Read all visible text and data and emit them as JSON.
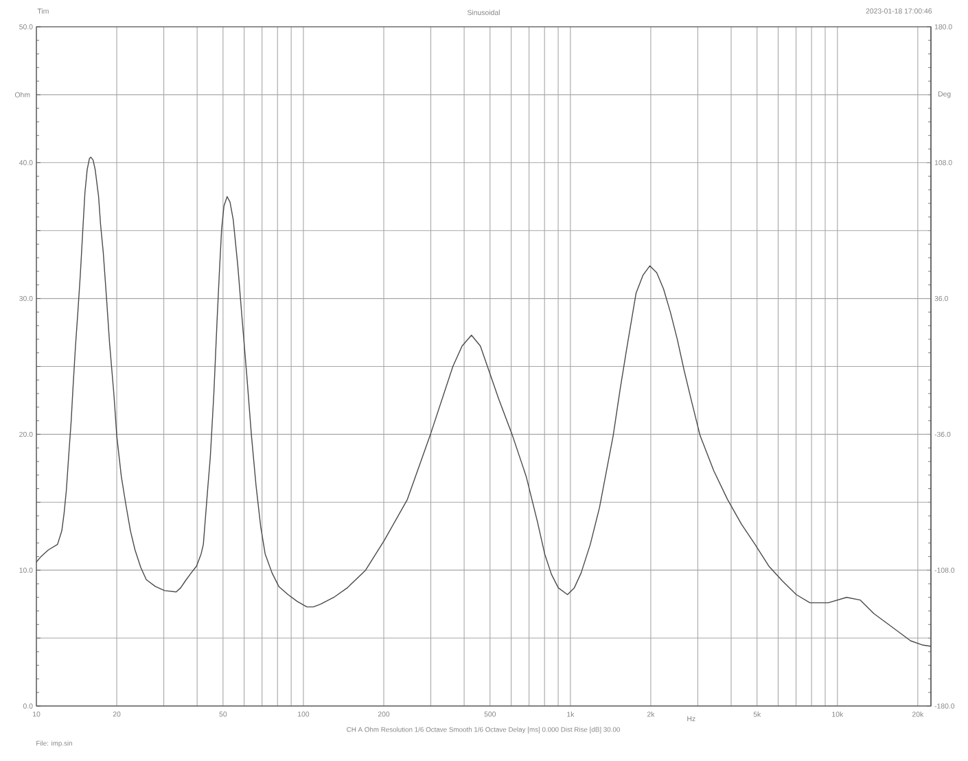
{
  "chart_data": {
    "type": "line",
    "title": "Sinusoidal",
    "xlabel": "Hz",
    "ylabel": "Ohm",
    "y2label": "Deg",
    "annotations": [
      "Tim",
      "2023-01-18 17:00:46",
      "CH A Ohm Resolution 1/6 Octave Smooth 1/6 Octave Delay [ms] 0.000 Dist Rise [dB] 30.00",
      "File: imp.sin"
    ],
    "log": "x",
    "grid": true,
    "line_style": "solid",
    "color": "#4a4a4a",
    "xlim": [
      10,
      22400
    ],
    "ylim": [
      0,
      50
    ],
    "y2lim": [
      -180,
      180
    ],
    "xticks": [
      10,
      20,
      {
        "value": 30,
        "label": null
      },
      {
        "value": 40,
        "label": null
      },
      50,
      {
        "value": 60,
        "label": null
      },
      {
        "value": 70,
        "label": null
      },
      {
        "value": 80,
        "label": null
      },
      {
        "value": 90,
        "label": null
      },
      100,
      200,
      {
        "value": 300,
        "label": null
      },
      {
        "value": 400,
        "label": null
      },
      500,
      {
        "value": 600,
        "label": null
      },
      {
        "value": 700,
        "label": null
      },
      {
        "value": 800,
        "label": null
      },
      {
        "value": 900,
        "label": null
      },
      {
        "value": 1000,
        "label": "1k"
      },
      {
        "value": 2000,
        "label": "2k"
      },
      {
        "value": 3000,
        "label": null
      },
      {
        "value": 4000,
        "label": null
      },
      {
        "value": 5000,
        "label": "5k"
      },
      {
        "value": 6000,
        "label": null
      },
      {
        "value": 7000,
        "label": null
      },
      {
        "value": 8000,
        "label": null
      },
      {
        "value": 9000,
        "label": null
      },
      {
        "value": 10000,
        "label": "10k"
      },
      {
        "value": 20000,
        "label": "20k"
      }
    ],
    "yticks": [
      {
        "value": 0,
        "label": "0.0"
      },
      {
        "value": 5,
        "label": null
      },
      {
        "value": 10,
        "label": "10.0"
      },
      {
        "value": 15,
        "label": null
      },
      {
        "value": 20,
        "label": "20.0"
      },
      {
        "value": 25,
        "label": null
      },
      {
        "value": 30,
        "label": "30.0"
      },
      {
        "value": 35,
        "label": null
      },
      {
        "value": 40,
        "label": "40.0"
      },
      {
        "value": 45,
        "label": null
      },
      {
        "value": 50,
        "label": "50.0"
      }
    ],
    "y2ticks": [
      {
        "value": -180,
        "label": "-180.0"
      },
      {
        "value": -108,
        "label": "-108.0"
      },
      {
        "value": -36,
        "label": "-36.0"
      },
      {
        "value": 36,
        "label": "36.0"
      },
      {
        "value": 108,
        "label": "108.0"
      },
      {
        "value": 180,
        "label": "180.0"
      }
    ],
    "x": [
      10,
      10.4,
      11.1,
      12.0,
      12.45,
      12.7,
      12.95,
      13.2,
      13.5,
      13.7,
      14.0,
      14.3,
      14.6,
      14.9,
      15.2,
      15.5,
      15.8,
      16.0,
      16.3,
      16.6,
      17.1,
      17.4,
      17.8,
      18.3,
      18.8,
      19.5,
      20.0,
      20.8,
      21.6,
      22.5,
      23.4,
      24.6,
      25.8,
      27.9,
      30.2,
      33.4,
      34.7,
      36.1,
      38.0,
      39.8,
      41.4,
      42.2,
      43.1,
      43.9,
      44.8,
      46.2,
      47.5,
      48.5,
      49.4,
      50.4,
      51.8,
      53.1,
      54.6,
      56.8,
      59.0,
      61.4,
      63.9,
      66.5,
      69.2,
      71.9,
      76.3,
      80.9,
      87.6,
      94.8,
      103,
      109,
      116,
      130,
      146,
      171,
      201,
      245,
      298,
      363,
      393,
      426,
      460,
      489,
      539,
      607,
      683,
      754,
      801,
      849,
      901,
      975,
      1034,
      1097,
      1187,
      1285,
      1446,
      1535,
      1628,
      1762,
      1869,
      1983,
      2105,
      2233,
      2368,
      2513,
      2667,
      2829,
      3061,
      3446,
      3879,
      4367,
      4914,
      5534,
      6229,
      7014,
      7893,
      9242,
      10820,
      12180,
      13710,
      16060,
      18800,
      20750,
      22400
    ],
    "values": [
      10.6,
      11.0,
      11.5,
      11.9,
      12.9,
      14.2,
      15.9,
      18.3,
      21.0,
      23.3,
      26.4,
      29.0,
      31.7,
      34.8,
      37.8,
      39.5,
      40.3,
      40.4,
      40.2,
      39.5,
      37.5,
      35.4,
      33.4,
      30.1,
      26.7,
      23.0,
      19.9,
      16.9,
      14.9,
      12.9,
      11.5,
      10.2,
      9.3,
      8.8,
      8.5,
      8.4,
      8.7,
      9.2,
      9.8,
      10.3,
      11.2,
      11.9,
      14.2,
      16.2,
      18.3,
      23.0,
      28.4,
      32.1,
      35.1,
      36.8,
      37.5,
      37.1,
      35.8,
      32.4,
      28.4,
      24.3,
      19.9,
      16.2,
      13.2,
      11.2,
      9.8,
      8.8,
      8.2,
      7.7,
      7.3,
      7.3,
      7.5,
      8.0,
      8.7,
      10.0,
      12.2,
      15.2,
      19.9,
      25.0,
      26.5,
      27.3,
      26.5,
      25.0,
      22.6,
      19.9,
      16.9,
      13.5,
      11.2,
      9.7,
      8.7,
      8.2,
      8.7,
      9.8,
      11.9,
      14.6,
      19.9,
      23.3,
      26.4,
      30.4,
      31.7,
      32.4,
      31.9,
      30.7,
      29.0,
      27.0,
      24.7,
      22.6,
      19.9,
      17.3,
      15.2,
      13.4,
      11.9,
      10.3,
      9.2,
      8.2,
      7.6,
      7.6,
      8.0,
      7.8,
      6.8,
      5.8,
      4.8,
      4.5,
      4.4
    ]
  }
}
